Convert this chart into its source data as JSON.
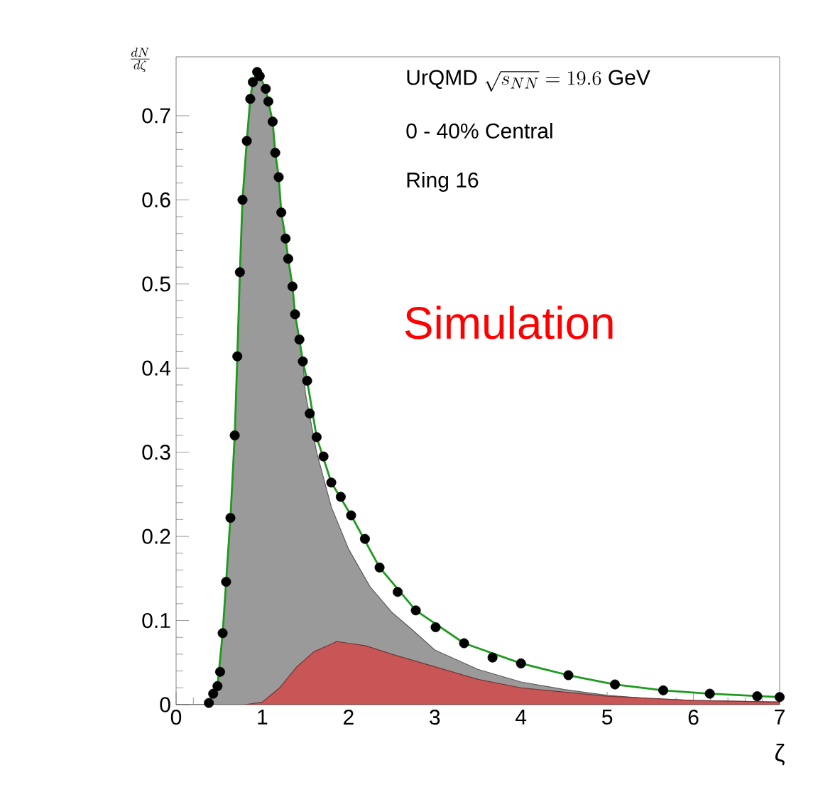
{
  "chart_data": {
    "type": "scatter",
    "xlabel": "ζ",
    "ylabel": "\\frac{dN}{d\\zeta}",
    "annotations": [
      "\\mathrm{UrQMD}\\ \\sqrt{s_{NN}} = 19.6\\ \\mathrm{GeV}",
      "0 - 40% Central",
      "Ring  16",
      "Simulation"
    ],
    "xlim": [
      0,
      7
    ],
    "ylim": [
      0,
      0.77
    ],
    "xticks": [
      0,
      1,
      2,
      3,
      4,
      5,
      6,
      7
    ],
    "yticks": [
      0,
      0.1,
      0.2,
      0.3,
      0.4,
      0.5,
      0.6,
      0.7
    ],
    "grid": false,
    "series": [
      {
        "type": "area",
        "color": "#9a9a9a",
        "x": [
          0,
          0.35,
          0.43,
          0.48,
          0.54,
          0.58,
          0.63,
          0.68,
          0.71,
          0.74,
          0.77,
          0.82,
          0.86,
          0.89,
          0.94,
          0.97,
          1.04,
          1.07,
          1.12,
          1.15,
          1.19,
          1.22,
          1.27,
          1.3,
          1.35,
          1.38,
          1.43,
          1.47,
          1.5,
          1.63,
          1.8,
          2.0,
          2.25,
          2.5,
          2.75,
          3.0,
          3.5,
          4.0,
          4.5,
          5.0,
          5.5,
          6.0,
          7.0
        ],
        "values": [
          0,
          0,
          0.012,
          0.022,
          0.085,
          0.146,
          0.222,
          0.32,
          0.414,
          0.514,
          0.6,
          0.67,
          0.72,
          0.74,
          0.752,
          0.747,
          0.732,
          0.717,
          0.693,
          0.656,
          0.627,
          0.585,
          0.554,
          0.53,
          0.497,
          0.464,
          0.434,
          0.408,
          0.37,
          0.3,
          0.235,
          0.185,
          0.14,
          0.11,
          0.088,
          0.065,
          0.042,
          0.027,
          0.018,
          0.011,
          0.007,
          0.005,
          0.003
        ]
      },
      {
        "type": "area",
        "color": "#c85656",
        "x": [
          0.8,
          1.0,
          1.2,
          1.4,
          1.6,
          1.8,
          1.86,
          2.0,
          2.2,
          2.5,
          3.0,
          3.5,
          4.0,
          5.0,
          6.0,
          7.0
        ],
        "values": [
          0,
          0.003,
          0.02,
          0.045,
          0.063,
          0.072,
          0.075,
          0.073,
          0.07,
          0.06,
          0.045,
          0.03,
          0.02,
          0.01,
          0.005,
          0.003
        ]
      },
      {
        "marker": "circle",
        "color": "#000000",
        "x": [
          0.38,
          0.43,
          0.48,
          0.51,
          0.54,
          0.58,
          0.63,
          0.68,
          0.71,
          0.74,
          0.77,
          0.82,
          0.86,
          0.89,
          0.94,
          0.97,
          1.04,
          1.07,
          1.12,
          1.15,
          1.19,
          1.22,
          1.27,
          1.3,
          1.35,
          1.38,
          1.43,
          1.47,
          1.52,
          1.55,
          1.63,
          1.71,
          1.8,
          1.91,
          2.03,
          2.19,
          2.36,
          2.57,
          2.78,
          3.01,
          3.34,
          3.67,
          4.0,
          4.55,
          5.09,
          5.65,
          6.19,
          6.74,
          7.0
        ],
        "values": [
          0.002,
          0.013,
          0.022,
          0.039,
          0.085,
          0.146,
          0.222,
          0.32,
          0.414,
          0.514,
          0.6,
          0.67,
          0.72,
          0.74,
          0.752,
          0.747,
          0.732,
          0.717,
          0.693,
          0.656,
          0.627,
          0.585,
          0.554,
          0.53,
          0.497,
          0.464,
          0.434,
          0.408,
          0.385,
          0.346,
          0.318,
          0.295,
          0.264,
          0.247,
          0.225,
          0.197,
          0.163,
          0.134,
          0.112,
          0.092,
          0.073,
          0.056,
          0.049,
          0.035,
          0.024,
          0.017,
          0.013,
          0.01,
          0.009
        ]
      },
      {
        "type": "line",
        "marker": "none",
        "color": "#1f9a1f",
        "x": [
          0.35,
          0.43,
          0.48,
          0.54,
          0.58,
          0.63,
          0.68,
          0.71,
          0.74,
          0.77,
          0.82,
          0.86,
          0.89,
          0.94,
          0.97,
          1.04,
          1.07,
          1.12,
          1.15,
          1.19,
          1.22,
          1.27,
          1.3,
          1.35,
          1.38,
          1.43,
          1.47,
          1.52,
          1.63,
          1.8,
          2.03,
          2.36,
          2.78,
          3.34,
          4.0,
          4.55,
          5.09,
          5.65,
          6.19,
          7.0
        ],
        "values": [
          0,
          0.012,
          0.022,
          0.085,
          0.146,
          0.222,
          0.32,
          0.414,
          0.514,
          0.6,
          0.67,
          0.72,
          0.74,
          0.752,
          0.747,
          0.732,
          0.717,
          0.693,
          0.656,
          0.627,
          0.585,
          0.554,
          0.53,
          0.497,
          0.464,
          0.434,
          0.408,
          0.385,
          0.318,
          0.264,
          0.225,
          0.163,
          0.112,
          0.073,
          0.049,
          0.035,
          0.024,
          0.017,
          0.013,
          0.009
        ]
      }
    ]
  }
}
